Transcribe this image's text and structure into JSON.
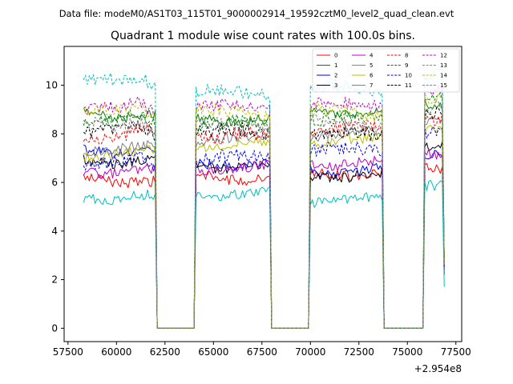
{
  "chart_data": {
    "type": "line",
    "suptitle": "Data file: modeM0/AS1T03_115T01_9000002914_19592cztM0_level2_quad_clean.evt",
    "title": "Quadrant 1 module wise count rates with 100.0s bins.",
    "xlabel": "",
    "ylabel": "",
    "x_offset_label": "+2.954e8",
    "xlim": [
      57300,
      77800
    ],
    "ylim": [
      -0.55,
      11.6
    ],
    "xticks": [
      57500,
      60000,
      62500,
      65000,
      67500,
      70000,
      72500,
      75000,
      77500
    ],
    "xtick_labels": [
      "57500",
      "60000",
      "62500",
      "65000",
      "67500",
      "70000",
      "72500",
      "75000",
      "77500"
    ],
    "yticks": [
      0,
      2,
      4,
      6,
      8,
      10
    ],
    "ytick_labels": [
      "0",
      "2",
      "4",
      "6",
      "8",
      "10"
    ],
    "legend_position": "top-right",
    "segments": [
      {
        "start": 58300,
        "end": 62000
      },
      {
        "start": 64100,
        "end": 67900
      },
      {
        "start": 70000,
        "end": 73700
      },
      {
        "start": 75900,
        "end": 76900
      }
    ],
    "gaps": [
      {
        "start": 62000,
        "end": 64100
      },
      {
        "start": 67900,
        "end": 70000
      },
      {
        "start": 73700,
        "end": 75900
      }
    ],
    "bin_seconds": 100,
    "series": [
      {
        "name": "0",
        "color": "#ff0000",
        "dash": "solid",
        "levels": [
          6.1,
          6.2,
          6.4,
          6.6
        ]
      },
      {
        "name": "1",
        "color": "#008000",
        "dash": "solid",
        "levels": [
          8.8,
          8.6,
          8.9,
          9.2
        ]
      },
      {
        "name": "2",
        "color": "#0000ff",
        "dash": "solid",
        "levels": [
          7.3,
          6.8,
          6.5,
          7.2
        ]
      },
      {
        "name": "3",
        "color": "#000000",
        "dash": "solid",
        "levels": [
          6.9,
          6.7,
          6.3,
          7.6
        ]
      },
      {
        "name": "4",
        "color": "#bf00bf",
        "dash": "solid",
        "levels": [
          6.5,
          6.6,
          6.8,
          7.3
        ]
      },
      {
        "name": "5",
        "color": "#00bfbf",
        "dash": "solid",
        "levels": [
          5.4,
          5.5,
          5.3,
          6.0
        ]
      },
      {
        "name": "6",
        "color": "#bfbf00",
        "dash": "solid",
        "levels": [
          7.2,
          7.6,
          7.7,
          8.3
        ]
      },
      {
        "name": "7",
        "color": "#808080",
        "dash": "solid",
        "levels": [
          7.4,
          7.8,
          8.0,
          8.6
        ]
      },
      {
        "name": "8",
        "color": "#ff0000",
        "dash": "dashed",
        "levels": [
          7.9,
          7.9,
          8.2,
          8.6
        ]
      },
      {
        "name": "9",
        "color": "#008000",
        "dash": "dashed",
        "levels": [
          8.5,
          8.4,
          8.6,
          9.4
        ]
      },
      {
        "name": "10",
        "color": "#0000ff",
        "dash": "dashed",
        "levels": [
          6.8,
          7.0,
          7.3,
          8.0
        ]
      },
      {
        "name": "11",
        "color": "#000000",
        "dash": "dashed",
        "levels": [
          8.1,
          8.1,
          8.0,
          8.8
        ]
      },
      {
        "name": "12",
        "color": "#bf00bf",
        "dash": "dashed",
        "levels": [
          9.0,
          9.1,
          9.2,
          9.7
        ]
      },
      {
        "name": "13",
        "color": "#00bfbf",
        "dash": "dashed",
        "levels": [
          10.1,
          9.7,
          9.9,
          10.3
        ]
      },
      {
        "name": "14",
        "color": "#bfbf00",
        "dash": "dashed",
        "levels": [
          8.9,
          8.9,
          8.9,
          9.3
        ]
      },
      {
        "name": "15",
        "color": "#808080",
        "dash": "dashed",
        "levels": [
          8.3,
          8.4,
          8.4,
          9.0
        ]
      }
    ],
    "end_values": [
      2.4,
      2.9,
      2.2,
      2.9,
      2.6,
      1.7,
      2.6,
      2.6,
      2.6,
      2.7,
      2.5,
      3.0,
      2.8,
      2.6,
      2.7,
      2.7
    ]
  }
}
